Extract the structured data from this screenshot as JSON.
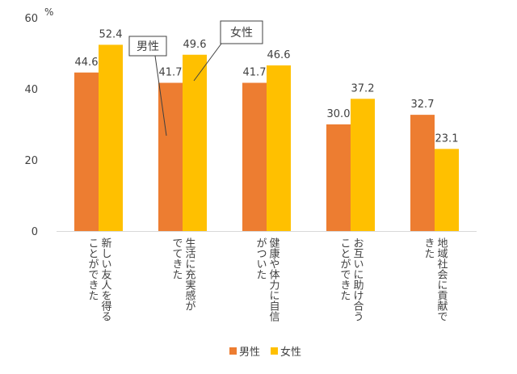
{
  "chart_data": {
    "type": "bar",
    "unit": "%",
    "categories": [
      [
        "新しい友人を得る",
        "ことができた"
      ],
      [
        "生活に充実感が",
        "でてきた"
      ],
      [
        "健康や体力に自信",
        "がついた"
      ],
      [
        "お互いに助け合う",
        "ことができた"
      ],
      [
        "地域社会に貢献で",
        "きた"
      ]
    ],
    "series": [
      {
        "name": "男性",
        "values": [
          44.6,
          41.7,
          41.7,
          30.0,
          32.7
        ],
        "labels": [
          "44.6",
          "41.7",
          "41.7",
          "30.0",
          "32.7"
        ]
      },
      {
        "name": "女性",
        "values": [
          52.4,
          49.6,
          46.6,
          37.2,
          23.1
        ],
        "labels": [
          "52.4",
          "49.6",
          "46.6",
          "37.2",
          "23.1"
        ]
      }
    ],
    "ylim": [
      0,
      60
    ],
    "yticks": [
      0,
      20,
      40,
      60
    ],
    "grid": false,
    "legend_position": "bottom",
    "callouts": [
      "男性",
      "女性"
    ],
    "colors": {
      "male": "#ED7D31",
      "female": "#FFC000",
      "axis": "#d9d9d9",
      "text": "#404040"
    }
  }
}
